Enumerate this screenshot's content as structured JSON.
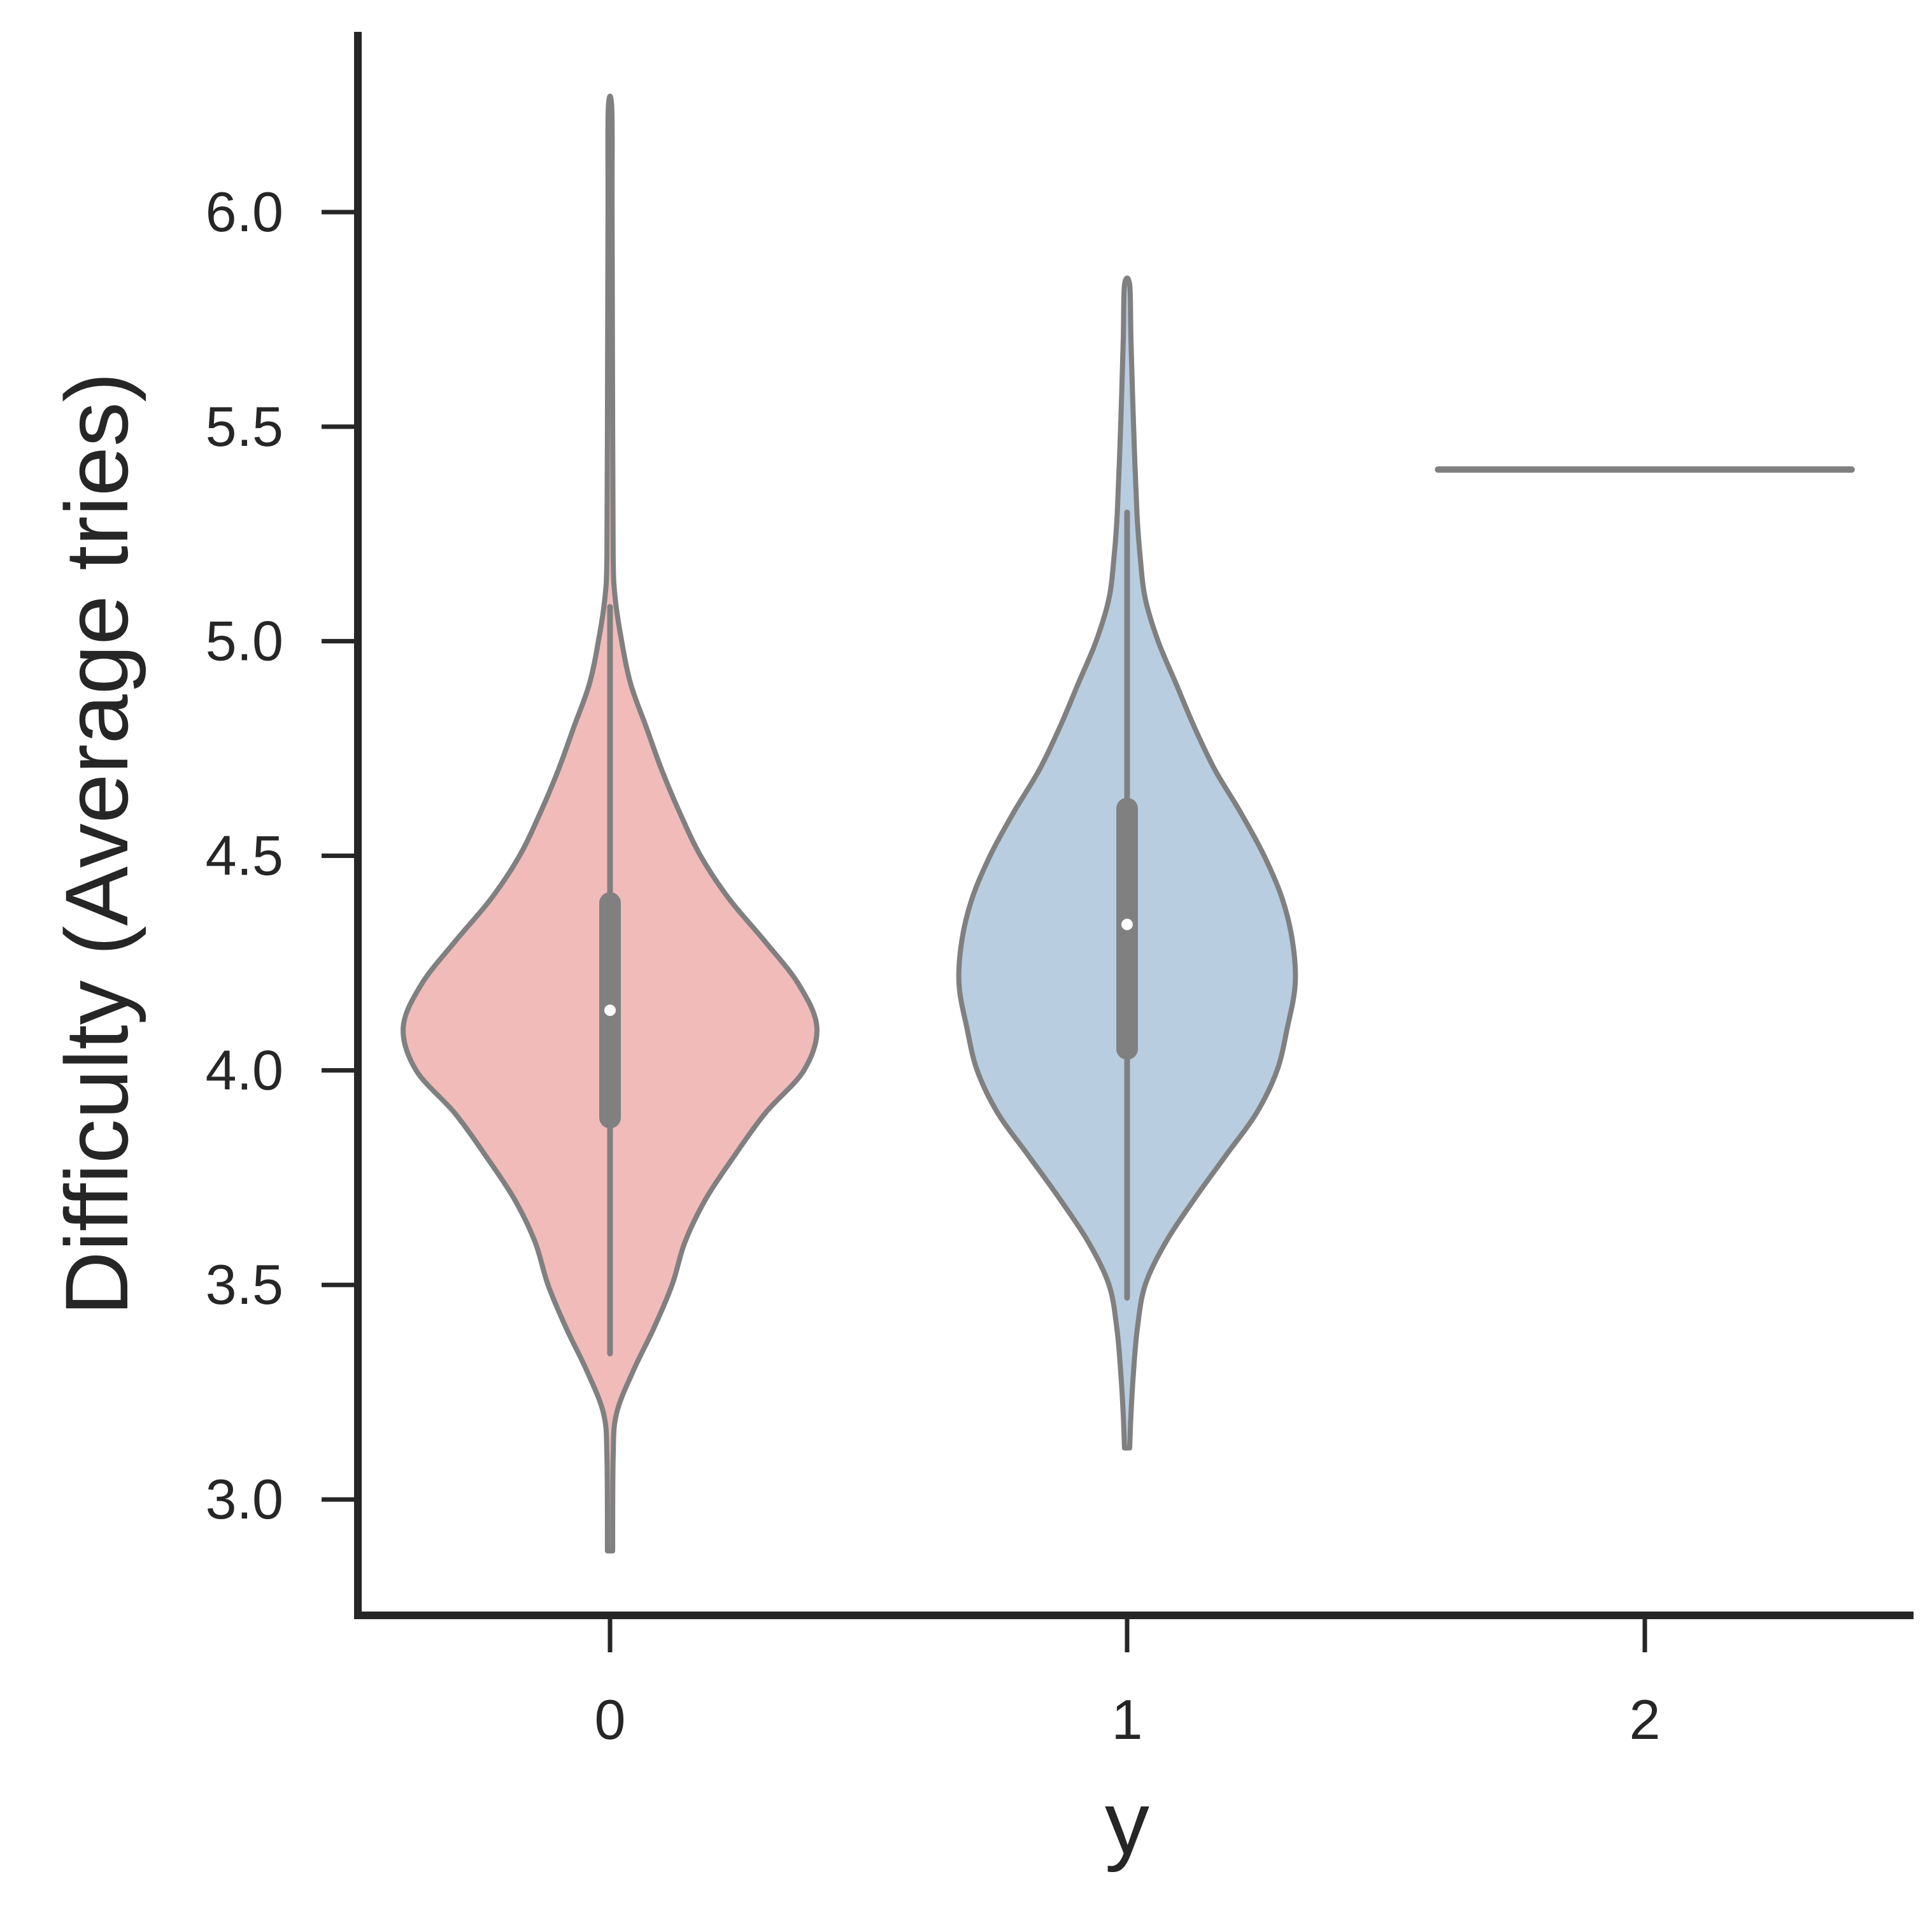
{
  "chart_data": {
    "type": "violin",
    "xlabel": "y",
    "ylabel": "Difficulty (Average tries)",
    "categories": [
      "0",
      "1",
      "2"
    ],
    "yticks": [
      "3.0",
      "3.5",
      "4.0",
      "4.5",
      "5.0",
      "5.5",
      "6.0"
    ],
    "ylim": [
      2.73,
      6.42
    ],
    "series": [
      {
        "category": "0",
        "color": "#f1bbba",
        "range": [
          2.88,
          6.24
        ],
        "whisker": [
          3.34,
          5.08
        ],
        "quartiles": [
          3.89,
          4.39
        ],
        "median": 4.14,
        "density": [
          [
            2.88,
            0.01
          ],
          [
            3.1,
            0.012
          ],
          [
            3.2,
            0.025
          ],
          [
            3.3,
            0.09
          ],
          [
            3.4,
            0.17
          ],
          [
            3.5,
            0.24
          ],
          [
            3.6,
            0.29
          ],
          [
            3.7,
            0.37
          ],
          [
            3.8,
            0.48
          ],
          [
            3.9,
            0.6
          ],
          [
            4.0,
            0.75
          ],
          [
            4.1,
            0.8
          ],
          [
            4.2,
            0.73
          ],
          [
            4.3,
            0.6
          ],
          [
            4.4,
            0.46
          ],
          [
            4.5,
            0.35
          ],
          [
            4.6,
            0.27
          ],
          [
            4.7,
            0.2
          ],
          [
            4.8,
            0.14
          ],
          [
            4.9,
            0.08
          ],
          [
            5.0,
            0.045
          ],
          [
            5.1,
            0.02
          ],
          [
            5.2,
            0.012
          ],
          [
            5.5,
            0.01
          ],
          [
            6.0,
            0.008
          ],
          [
            6.24,
            0.007
          ]
        ]
      },
      {
        "category": "1",
        "color": "#b9cde0",
        "range": [
          3.12,
          5.83
        ],
        "whisker": [
          3.47,
          5.3
        ],
        "quartiles": [
          4.05,
          4.61
        ],
        "median": 4.34,
        "density": [
          [
            3.12,
            0.01
          ],
          [
            3.2,
            0.015
          ],
          [
            3.3,
            0.025
          ],
          [
            3.4,
            0.04
          ],
          [
            3.5,
            0.07
          ],
          [
            3.6,
            0.15
          ],
          [
            3.7,
            0.26
          ],
          [
            3.8,
            0.38
          ],
          [
            3.9,
            0.5
          ],
          [
            4.0,
            0.58
          ],
          [
            4.1,
            0.62
          ],
          [
            4.2,
            0.65
          ],
          [
            4.3,
            0.64
          ],
          [
            4.4,
            0.6
          ],
          [
            4.5,
            0.53
          ],
          [
            4.6,
            0.44
          ],
          [
            4.7,
            0.34
          ],
          [
            4.8,
            0.26
          ],
          [
            4.9,
            0.19
          ],
          [
            5.0,
            0.12
          ],
          [
            5.1,
            0.07
          ],
          [
            5.2,
            0.05
          ],
          [
            5.3,
            0.038
          ],
          [
            5.5,
            0.025
          ],
          [
            5.7,
            0.015
          ],
          [
            5.83,
            0.01
          ]
        ]
      },
      {
        "category": "2",
        "color": "#808080",
        "range": [
          5.4,
          5.4
        ],
        "line": 5.4,
        "line_halfwidth": 0.8
      }
    ]
  }
}
